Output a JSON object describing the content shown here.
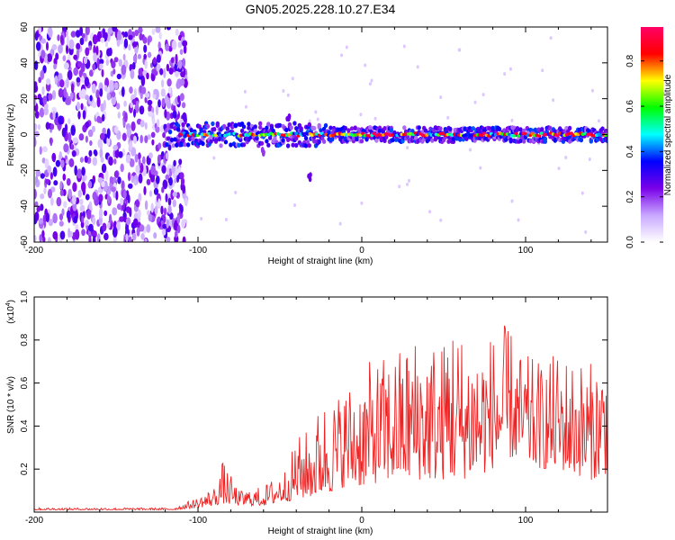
{
  "figure_title": "GN05.2025.228.10.27.E34",
  "chart_data": [
    {
      "type": "heatmap",
      "title": "GN05.2025.228.10.27.E34",
      "xlabel": "Height of straight line (km)",
      "ylabel": "Frequency (Hz)",
      "xlim": [
        -200,
        150
      ],
      "ylim": [
        -60,
        60
      ],
      "x_ticks": [
        -200,
        -100,
        0,
        100
      ],
      "y_ticks": [
        -60,
        -40,
        -20,
        0,
        20,
        40,
        60
      ],
      "colorbar": {
        "label": "Normalized spectral amplitude",
        "range": [
          0,
          0.95
        ],
        "ticks": [
          0.0,
          0.2,
          0.4,
          0.6,
          0.8
        ],
        "stops": [
          "#ffffff",
          "#c8a8ff",
          "#7a00e8",
          "#0000ff",
          "#00ffff",
          "#00ff00",
          "#ffff00",
          "#ff0000",
          "#ff0066"
        ]
      },
      "regions": [
        {
          "name": "noise",
          "x_range": [
            -200,
            -107
          ],
          "freq_range": [
            -60,
            60
          ],
          "amplitude": [
            0.05,
            0.3
          ]
        },
        {
          "name": "signal-band",
          "x_range": [
            -120,
            150
          ],
          "center_freq": 0,
          "half_width": 4,
          "amplitude": [
            0.3,
            0.9
          ]
        }
      ],
      "features": [
        {
          "x": -32,
          "freq": -23,
          "amplitude": 0.25
        },
        {
          "x": -45,
          "freq": 8,
          "amplitude": 0.25
        },
        {
          "x": -60,
          "freq": -10,
          "amplitude": 0.2
        }
      ]
    },
    {
      "type": "line",
      "xlabel": "Height of straight line (km)",
      "ylabel": "SNR (10 * v/v)",
      "y_scale_label": "(x10",
      "y_scale_exp": "4",
      "xlim": [
        -200,
        150
      ],
      "ylim": [
        0,
        1.0
      ],
      "x_ticks": [
        -200,
        -100,
        0,
        100
      ],
      "y_ticks": [
        0.2,
        0.4,
        0.6,
        0.8,
        1.0
      ],
      "line_color": "#ee2222",
      "envelope": {
        "x": [
          -200,
          -115,
          -100,
          -90,
          -85,
          -75,
          -60,
          -45,
          -40,
          -30,
          -25,
          -15,
          -10,
          0,
          5,
          20,
          35,
          50,
          53,
          60,
          75,
          90,
          95,
          110,
          120,
          140,
          150
        ],
        "baseline": [
          0.01,
          0.01,
          0.02,
          0.03,
          0.04,
          0.03,
          0.03,
          0.05,
          0.06,
          0.07,
          0.08,
          0.1,
          0.12,
          0.12,
          0.13,
          0.15,
          0.15,
          0.15,
          0.15,
          0.15,
          0.18,
          0.25,
          0.25,
          0.2,
          0.2,
          0.15,
          0.18
        ],
        "peak": [
          0.02,
          0.02,
          0.07,
          0.12,
          0.24,
          0.1,
          0.12,
          0.22,
          0.35,
          0.4,
          0.52,
          0.55,
          0.6,
          0.65,
          0.7,
          0.75,
          0.85,
          0.8,
          1.0,
          0.85,
          0.82,
          0.88,
          0.75,
          0.7,
          0.75,
          0.7,
          0.77
        ]
      }
    }
  ]
}
